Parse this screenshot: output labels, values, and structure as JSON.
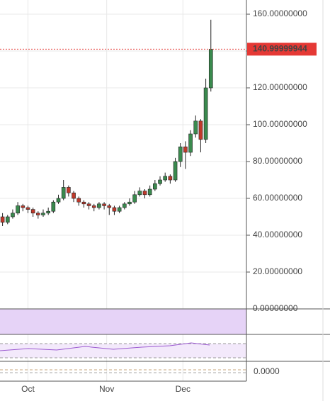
{
  "chart_data": {
    "type": "candlestick",
    "x": [
      1,
      3,
      5,
      7,
      9,
      11,
      13,
      15,
      17,
      19,
      21,
      23,
      25,
      27,
      29,
      31,
      33,
      35,
      37,
      39,
      41,
      43,
      45,
      47,
      49,
      51,
      53,
      55,
      57,
      59,
      61,
      63,
      65,
      67,
      69,
      71,
      73,
      75,
      77,
      79,
      81,
      83
    ],
    "open": [
      50,
      47,
      50,
      52,
      56,
      55,
      54,
      52,
      51,
      52,
      53,
      58,
      60,
      66,
      63,
      60,
      58,
      57,
      56,
      55,
      57,
      56,
      55,
      53,
      55,
      57,
      58,
      62,
      64,
      62,
      65,
      68,
      70,
      72,
      70,
      80,
      88,
      85,
      95,
      102,
      92,
      120
    ],
    "high": [
      52,
      51,
      54,
      58,
      57,
      56,
      55,
      53,
      54,
      55,
      59,
      62,
      70,
      67,
      64,
      61,
      59,
      58,
      57,
      58,
      58,
      57,
      56,
      56,
      58,
      60,
      64,
      66,
      65,
      67,
      70,
      72,
      74,
      73,
      82,
      90,
      91,
      97,
      105,
      103,
      125,
      157
    ],
    "low": [
      45,
      46,
      49,
      51,
      53,
      52,
      50,
      49,
      50,
      51,
      52,
      57,
      59,
      61,
      58,
      56,
      55,
      54,
      53,
      54,
      54,
      51,
      51,
      52,
      54,
      56,
      57,
      61,
      60,
      61,
      64,
      67,
      69,
      68,
      69,
      77,
      76,
      83,
      93,
      85,
      90,
      118
    ],
    "close": [
      47,
      50,
      52,
      56,
      55,
      54,
      52,
      51,
      52,
      53,
      58,
      60,
      66,
      63,
      60,
      58,
      57,
      56,
      55,
      57,
      56,
      55,
      53,
      55,
      57,
      58,
      62,
      64,
      62,
      65,
      68,
      70,
      72,
      70,
      80,
      88,
      85,
      95,
      102,
      92,
      120,
      141
    ],
    "up_color": "#3a8a4e",
    "down_color": "#c0392b",
    "xlim": [
      0,
      97
    ],
    "xticks": [
      {
        "value": 11,
        "label": "Oct"
      },
      {
        "value": 42,
        "label": "Nov"
      },
      {
        "value": 72,
        "label": "Dec"
      }
    ],
    "ylim": [
      0,
      167.7
    ],
    "yticks": [
      {
        "value": 0,
        "label": "0.00000000"
      },
      {
        "value": 20,
        "label": "20.00000000"
      },
      {
        "value": 40,
        "label": "40.00000000"
      },
      {
        "value": 60,
        "label": "60.00000000"
      },
      {
        "value": 80,
        "label": "80.00000000"
      },
      {
        "value": 100,
        "label": "100.00000000"
      },
      {
        "value": 120,
        "label": "120.00000000"
      },
      {
        "value": 140,
        "label": "140.00000000"
      },
      {
        "value": 160,
        "label": "160.00000000"
      }
    ],
    "last_price": 140.99999944,
    "indicator_label": "0.0000",
    "grid": true
  }
}
